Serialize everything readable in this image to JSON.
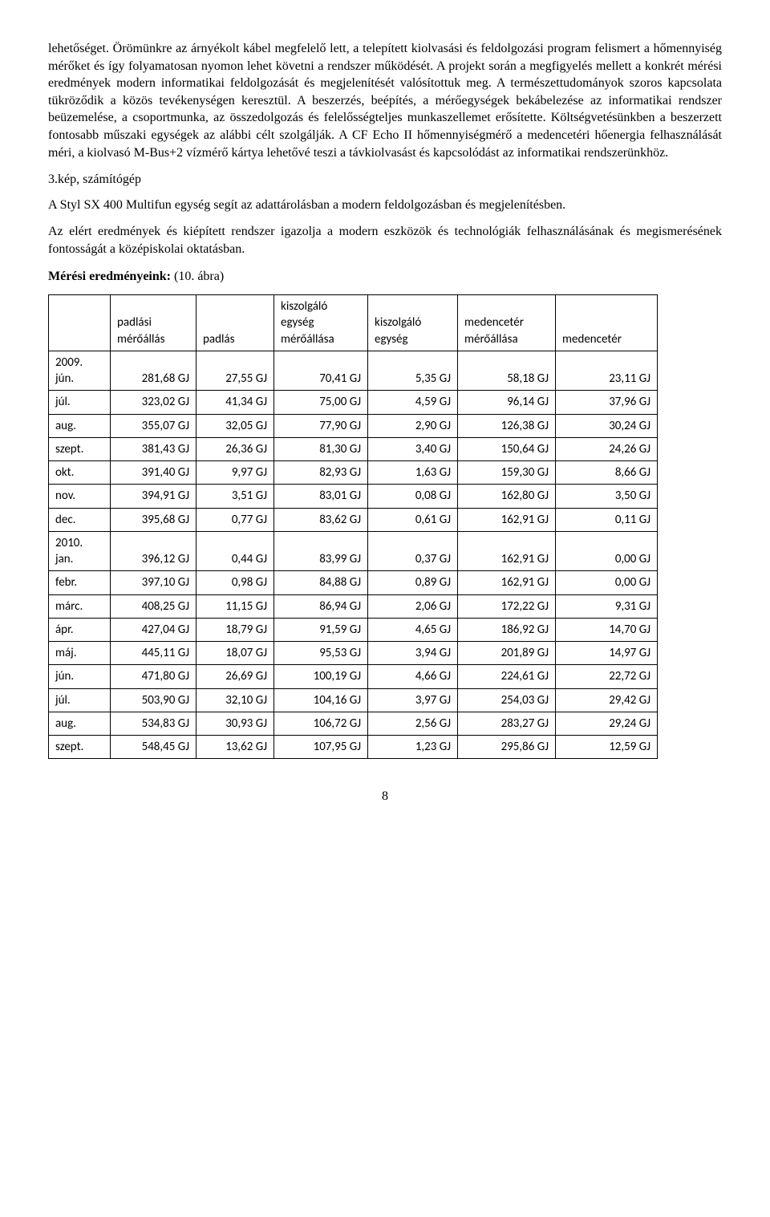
{
  "paragraphs": {
    "p1": "lehetőséget. Örömünkre az árnyékolt kábel megfelelő lett, a telepített kiolvasási és feldolgozási program felismert a hőmennyiség mérőket és így folyamatosan nyomon lehet követni a rendszer működését. A projekt során a megfigyelés mellett a konkrét mérési eredmények modern informatikai feldolgozását és megjelenítését valósítottuk meg. A természettudományok szoros kapcsolata tükröződik a közös tevékenységen keresztül. A beszerzés, beépítés, a mérőegységek bekábelezése az informatikai rendszer beüzemelése, a csoportmunka, az összedolgozás és felelősségteljes munkaszellemet erősítette. Költségvetésünkben a beszerzett fontosabb műszaki egységek az alábbi célt szolgálják. A CF Echo II hőmennyiségmérő a medencetéri hőenergia felhasználását méri, a kiolvasó M-Bus+2 vízmérő kártya lehetővé teszi a távkiolvasást és kapcsolódást  az informatikai rendszerünkhöz.",
    "fig": "3.kép, számítógép",
    "p2": " A Styl SX 400 Multifun egység segít az adattárolásban a modern feldolgozásban és megjelenítésben.",
    "p3": "Az elért eredmények és kiépített rendszer igazolja a modern eszközök és technológiák felhasználásának és megismerésének fontosságát a középiskolai oktatásban.",
    "heading_prefix": "Mérési eredményeink:",
    "heading_suffix": " (10. ábra)"
  },
  "table": {
    "headers": [
      "",
      "padlási mérőállás",
      "padlás",
      "kiszolgáló egység mérőállása",
      "kiszolgáló egység",
      "medencetér mérőállása",
      "medencetér"
    ],
    "header_widths": [
      "60px",
      "90px",
      "80px",
      "100px",
      "95px",
      "105px",
      "110px"
    ],
    "rows": [
      {
        "month": "2009. jún.",
        "multi": true,
        "c": [
          "281,68 GJ",
          "27,55 GJ",
          "70,41 GJ",
          "5,35 GJ",
          "58,18 GJ",
          "23,11 GJ"
        ]
      },
      {
        "month": "júl.",
        "c": [
          "323,02 GJ",
          "41,34 GJ",
          "75,00 GJ",
          "4,59 GJ",
          "96,14 GJ",
          "37,96 GJ"
        ]
      },
      {
        "month": "aug.",
        "c": [
          "355,07 GJ",
          "32,05 GJ",
          "77,90 GJ",
          "2,90 GJ",
          "126,38 GJ",
          "30,24 GJ"
        ]
      },
      {
        "month": "szept.",
        "c": [
          "381,43 GJ",
          "26,36 GJ",
          "81,30 GJ",
          "3,40 GJ",
          "150,64 GJ",
          "24,26 GJ"
        ]
      },
      {
        "month": "okt.",
        "c": [
          "391,40 GJ",
          "9,97 GJ",
          "82,93 GJ",
          "1,63 GJ",
          "159,30 GJ",
          "8,66 GJ"
        ]
      },
      {
        "month": "nov.",
        "c": [
          "394,91 GJ",
          "3,51 GJ",
          "83,01 GJ",
          "0,08 GJ",
          "162,80 GJ",
          "3,50 GJ"
        ]
      },
      {
        "month": "dec.",
        "c": [
          "395,68 GJ",
          "0,77 GJ",
          "83,62 GJ",
          "0,61 GJ",
          "162,91 GJ",
          "0,11 GJ"
        ]
      },
      {
        "month": "2010. jan.",
        "multi": true,
        "c": [
          "396,12 GJ",
          "0,44 GJ",
          "83,99 GJ",
          "0,37 GJ",
          "162,91 GJ",
          "0,00 GJ"
        ]
      },
      {
        "month": "febr.",
        "c": [
          "397,10 GJ",
          "0,98 GJ",
          "84,88 GJ",
          "0,89 GJ",
          "162,91 GJ",
          "0,00 GJ"
        ]
      },
      {
        "month": "márc.",
        "c": [
          "408,25 GJ",
          "11,15 GJ",
          "86,94 GJ",
          "2,06 GJ",
          "172,22 GJ",
          "9,31 GJ"
        ]
      },
      {
        "month": "ápr.",
        "c": [
          "427,04 GJ",
          "18,79 GJ",
          "91,59 GJ",
          "4,65 GJ",
          "186,92 GJ",
          "14,70 GJ"
        ]
      },
      {
        "month": "máj.",
        "c": [
          "445,11 GJ",
          "18,07 GJ",
          "95,53 GJ",
          "3,94 GJ",
          "201,89 GJ",
          "14,97 GJ"
        ]
      },
      {
        "month": "jún.",
        "c": [
          "471,80 GJ",
          "26,69 GJ",
          "100,19 GJ",
          "4,66 GJ",
          "224,61 GJ",
          "22,72 GJ"
        ]
      },
      {
        "month": "júl.",
        "c": [
          "503,90 GJ",
          "32,10 GJ",
          "104,16 GJ",
          "3,97 GJ",
          "254,03 GJ",
          "29,42 GJ"
        ]
      },
      {
        "month": "aug.",
        "c": [
          "534,83 GJ",
          "30,93 GJ",
          "106,72 GJ",
          "2,56 GJ",
          "283,27 GJ",
          "29,24 GJ"
        ]
      },
      {
        "month": "szept.",
        "c": [
          "548,45 GJ",
          "13,62 GJ",
          "107,95 GJ",
          "1,23 GJ",
          "295,86 GJ",
          "12,59 GJ"
        ]
      }
    ]
  },
  "page_number": "8"
}
